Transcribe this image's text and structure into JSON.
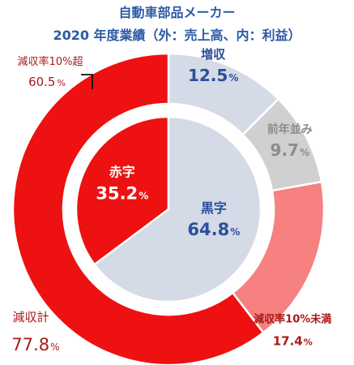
{
  "chart_data": {
    "type": "pie",
    "title": "自動車部品メーカー",
    "subtitle": "2020 年度業績（外：売上高、内：利益）",
    "inner_ring": {
      "series": "利益",
      "slices": [
        {
          "label": "赤字",
          "value": 35.2,
          "display": "35.2",
          "unit": "%",
          "color": "#ee1111",
          "text_color": "#ffffff"
        },
        {
          "label": "黒字",
          "value": 64.8,
          "display": "64.8",
          "unit": "%",
          "color": "#d4dae6",
          "text_color": "#2b4f9c"
        }
      ]
    },
    "outer_ring": {
      "series": "売上高",
      "slices": [
        {
          "label": "増収",
          "value": 12.5,
          "display": "12.5",
          "unit": "%",
          "color": "#d4dae6",
          "text_color": "#2b4f9c"
        },
        {
          "label": "前年並み",
          "value": 9.7,
          "display": "9.7",
          "unit": "%",
          "color": "#d0d0d0",
          "text_color": "#8c8c8c"
        },
        {
          "label": "減収率10%未満",
          "value": 17.4,
          "display": "17.4",
          "unit": "%",
          "color": "#f78080",
          "text_color": "#aa1a1a"
        },
        {
          "label": "減収率10%超",
          "value": 60.5,
          "display": "60.5",
          "unit": "%",
          "color": "#ee1111",
          "text_color": "#aa1a1a"
        }
      ]
    },
    "annotation": {
      "label": "減収計",
      "display": "77.8",
      "unit": "%",
      "text_color": "#aa1a1a"
    }
  }
}
